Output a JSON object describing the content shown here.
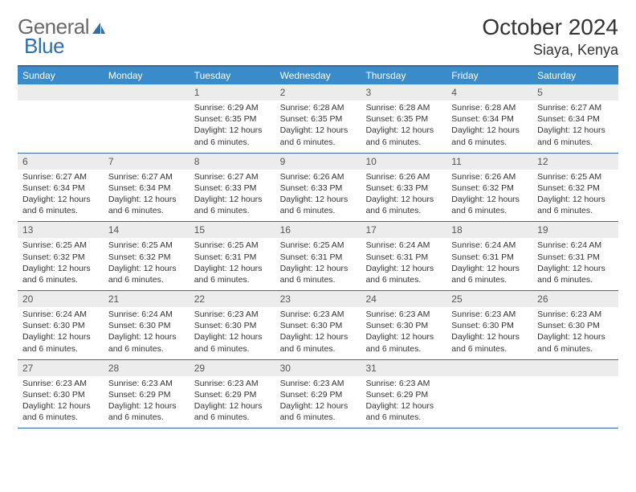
{
  "brand": {
    "part1": "General",
    "part2": "Blue"
  },
  "title": "October 2024",
  "location": "Siaya, Kenya",
  "colors": {
    "header_bg": "#3a8bc9",
    "rule": "#2f6fa8",
    "daynum_bg": "#ececec",
    "text": "#333333",
    "logo_gray": "#6a6a6a",
    "logo_blue": "#2f6fa8"
  },
  "day_names": [
    "Sunday",
    "Monday",
    "Tuesday",
    "Wednesday",
    "Thursday",
    "Friday",
    "Saturday"
  ],
  "weeks": [
    [
      {
        "n": "",
        "sr": "",
        "ss": "",
        "dl": ""
      },
      {
        "n": "",
        "sr": "",
        "ss": "",
        "dl": ""
      },
      {
        "n": "1",
        "sr": "Sunrise: 6:29 AM",
        "ss": "Sunset: 6:35 PM",
        "dl": "Daylight: 12 hours and 6 minutes."
      },
      {
        "n": "2",
        "sr": "Sunrise: 6:28 AM",
        "ss": "Sunset: 6:35 PM",
        "dl": "Daylight: 12 hours and 6 minutes."
      },
      {
        "n": "3",
        "sr": "Sunrise: 6:28 AM",
        "ss": "Sunset: 6:35 PM",
        "dl": "Daylight: 12 hours and 6 minutes."
      },
      {
        "n": "4",
        "sr": "Sunrise: 6:28 AM",
        "ss": "Sunset: 6:34 PM",
        "dl": "Daylight: 12 hours and 6 minutes."
      },
      {
        "n": "5",
        "sr": "Sunrise: 6:27 AM",
        "ss": "Sunset: 6:34 PM",
        "dl": "Daylight: 12 hours and 6 minutes."
      }
    ],
    [
      {
        "n": "6",
        "sr": "Sunrise: 6:27 AM",
        "ss": "Sunset: 6:34 PM",
        "dl": "Daylight: 12 hours and 6 minutes."
      },
      {
        "n": "7",
        "sr": "Sunrise: 6:27 AM",
        "ss": "Sunset: 6:34 PM",
        "dl": "Daylight: 12 hours and 6 minutes."
      },
      {
        "n": "8",
        "sr": "Sunrise: 6:27 AM",
        "ss": "Sunset: 6:33 PM",
        "dl": "Daylight: 12 hours and 6 minutes."
      },
      {
        "n": "9",
        "sr": "Sunrise: 6:26 AM",
        "ss": "Sunset: 6:33 PM",
        "dl": "Daylight: 12 hours and 6 minutes."
      },
      {
        "n": "10",
        "sr": "Sunrise: 6:26 AM",
        "ss": "Sunset: 6:33 PM",
        "dl": "Daylight: 12 hours and 6 minutes."
      },
      {
        "n": "11",
        "sr": "Sunrise: 6:26 AM",
        "ss": "Sunset: 6:32 PM",
        "dl": "Daylight: 12 hours and 6 minutes."
      },
      {
        "n": "12",
        "sr": "Sunrise: 6:25 AM",
        "ss": "Sunset: 6:32 PM",
        "dl": "Daylight: 12 hours and 6 minutes."
      }
    ],
    [
      {
        "n": "13",
        "sr": "Sunrise: 6:25 AM",
        "ss": "Sunset: 6:32 PM",
        "dl": "Daylight: 12 hours and 6 minutes."
      },
      {
        "n": "14",
        "sr": "Sunrise: 6:25 AM",
        "ss": "Sunset: 6:32 PM",
        "dl": "Daylight: 12 hours and 6 minutes."
      },
      {
        "n": "15",
        "sr": "Sunrise: 6:25 AM",
        "ss": "Sunset: 6:31 PM",
        "dl": "Daylight: 12 hours and 6 minutes."
      },
      {
        "n": "16",
        "sr": "Sunrise: 6:25 AM",
        "ss": "Sunset: 6:31 PM",
        "dl": "Daylight: 12 hours and 6 minutes."
      },
      {
        "n": "17",
        "sr": "Sunrise: 6:24 AM",
        "ss": "Sunset: 6:31 PM",
        "dl": "Daylight: 12 hours and 6 minutes."
      },
      {
        "n": "18",
        "sr": "Sunrise: 6:24 AM",
        "ss": "Sunset: 6:31 PM",
        "dl": "Daylight: 12 hours and 6 minutes."
      },
      {
        "n": "19",
        "sr": "Sunrise: 6:24 AM",
        "ss": "Sunset: 6:31 PM",
        "dl": "Daylight: 12 hours and 6 minutes."
      }
    ],
    [
      {
        "n": "20",
        "sr": "Sunrise: 6:24 AM",
        "ss": "Sunset: 6:30 PM",
        "dl": "Daylight: 12 hours and 6 minutes."
      },
      {
        "n": "21",
        "sr": "Sunrise: 6:24 AM",
        "ss": "Sunset: 6:30 PM",
        "dl": "Daylight: 12 hours and 6 minutes."
      },
      {
        "n": "22",
        "sr": "Sunrise: 6:23 AM",
        "ss": "Sunset: 6:30 PM",
        "dl": "Daylight: 12 hours and 6 minutes."
      },
      {
        "n": "23",
        "sr": "Sunrise: 6:23 AM",
        "ss": "Sunset: 6:30 PM",
        "dl": "Daylight: 12 hours and 6 minutes."
      },
      {
        "n": "24",
        "sr": "Sunrise: 6:23 AM",
        "ss": "Sunset: 6:30 PM",
        "dl": "Daylight: 12 hours and 6 minutes."
      },
      {
        "n": "25",
        "sr": "Sunrise: 6:23 AM",
        "ss": "Sunset: 6:30 PM",
        "dl": "Daylight: 12 hours and 6 minutes."
      },
      {
        "n": "26",
        "sr": "Sunrise: 6:23 AM",
        "ss": "Sunset: 6:30 PM",
        "dl": "Daylight: 12 hours and 6 minutes."
      }
    ],
    [
      {
        "n": "27",
        "sr": "Sunrise: 6:23 AM",
        "ss": "Sunset: 6:30 PM",
        "dl": "Daylight: 12 hours and 6 minutes."
      },
      {
        "n": "28",
        "sr": "Sunrise: 6:23 AM",
        "ss": "Sunset: 6:29 PM",
        "dl": "Daylight: 12 hours and 6 minutes."
      },
      {
        "n": "29",
        "sr": "Sunrise: 6:23 AM",
        "ss": "Sunset: 6:29 PM",
        "dl": "Daylight: 12 hours and 6 minutes."
      },
      {
        "n": "30",
        "sr": "Sunrise: 6:23 AM",
        "ss": "Sunset: 6:29 PM",
        "dl": "Daylight: 12 hours and 6 minutes."
      },
      {
        "n": "31",
        "sr": "Sunrise: 6:23 AM",
        "ss": "Sunset: 6:29 PM",
        "dl": "Daylight: 12 hours and 6 minutes."
      },
      {
        "n": "",
        "sr": "",
        "ss": "",
        "dl": ""
      },
      {
        "n": "",
        "sr": "",
        "ss": "",
        "dl": ""
      }
    ]
  ]
}
